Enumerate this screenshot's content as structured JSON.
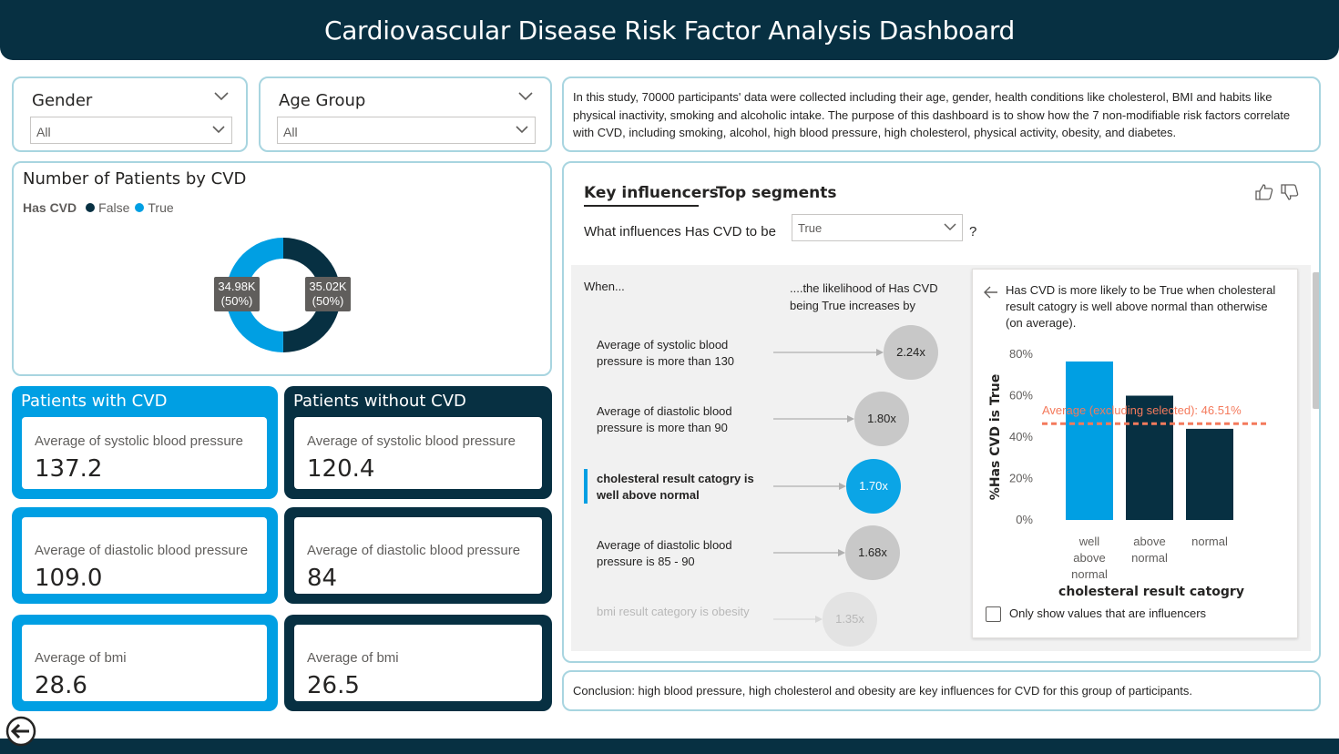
{
  "header": {
    "title": "Cardiovascular Disease Risk Factor Analysis Dashboard"
  },
  "colors": {
    "dark_navy": "#073042",
    "bright_blue": "#009fe3",
    "card_border": "#a8d5e0",
    "avg_line": "#f47a5c"
  },
  "filters": {
    "gender": {
      "label": "Gender",
      "value": "All"
    },
    "age_group": {
      "label": "Age Group",
      "value": "All"
    }
  },
  "description": "In this study, 70000 participants' data were collected including their age, gender, health conditions like cholesterol, BMI and habits like physical inactivity, smoking and alcoholic intake. The purpose of this dashboard is to show how the 7 non-modifiable risk factors correlate with CVD, including smoking, alcohol, high blood pressure, high cholesterol, physical activity, obesity, and diabetes.",
  "donut": {
    "title": "Number of Patients by CVD",
    "legend_title": "Has CVD",
    "legend": [
      {
        "name": "False",
        "color": "#073042"
      },
      {
        "name": "True",
        "color": "#009fe3"
      }
    ],
    "labels": {
      "true_value": "34.98K",
      "true_pct": "(50%)",
      "false_value": "35.02K",
      "false_pct": "(50%)"
    }
  },
  "chart_data": [
    {
      "type": "pie",
      "title": "Number of Patients by CVD",
      "legend_title": "Has CVD",
      "categories": [
        "False",
        "True"
      ],
      "values": [
        35020,
        34980
      ],
      "percentages": [
        50,
        50
      ],
      "colors": [
        "#073042",
        "#009fe3"
      ]
    },
    {
      "type": "bar",
      "xlabel": "cholesteral result catogry",
      "ylabel": "%Has CVD is True",
      "categories": [
        "well above normal",
        "above normal",
        "normal"
      ],
      "values": [
        76.5,
        60,
        44
      ],
      "ylim": [
        0,
        80
      ],
      "yticks": [
        "0%",
        "20%",
        "40%",
        "60%",
        "80%"
      ],
      "reference_line": {
        "label": "Average (excluding selected): 46.51%",
        "value": 46.51
      },
      "colors": [
        "#009fe3",
        "#073042",
        "#073042"
      ]
    }
  ],
  "with_cvd": {
    "title": "Patients with CVD",
    "tiles": [
      {
        "label": "Average of systolic blood pressure",
        "value": "137.2"
      },
      {
        "label": "Average of diastolic blood pressure",
        "value": "109.0"
      },
      {
        "label": "Average of bmi",
        "value": "28.6"
      }
    ]
  },
  "without_cvd": {
    "title": "Patients without CVD",
    "tiles": [
      {
        "label": "Average of systolic blood pressure",
        "value": "120.4"
      },
      {
        "label": "Average of diastolic blood pressure",
        "value": "84"
      },
      {
        "label": "Average of bmi",
        "value": "26.5"
      }
    ]
  },
  "key_influencers": {
    "tabs": [
      "Key influencers",
      "Top segments"
    ],
    "question_prefix": "What influences Has CVD to be",
    "selected_value": "True",
    "question_suffix": "?",
    "when_header": "When...",
    "likelihood_header": "....the likelihood of Has CVD being True increases by",
    "icons": [
      "thumbs-up-icon",
      "thumbs-down-icon"
    ],
    "rows": [
      {
        "label": "Average of systolic blood pressure is more than 130",
        "multiplier": "2.24x",
        "multiplier_value": 2.24
      },
      {
        "label": "Average of diastolic blood pressure is more than 90",
        "multiplier": "1.80x",
        "multiplier_value": 1.8
      },
      {
        "label": "cholesteral result catogry is well above normal",
        "multiplier": "1.70x",
        "multiplier_value": 1.7,
        "selected": true
      },
      {
        "label": "Average of diastolic blood pressure is 85 - 90",
        "multiplier": "1.68x",
        "multiplier_value": 1.68
      },
      {
        "label": "bmi result category is obesity",
        "multiplier": "1.35x",
        "multiplier_value": 1.35
      }
    ],
    "detail": {
      "text": "Has CVD is more likely to be True when cholesteral result catogry is well above normal than otherwise (on average).",
      "checkbox_label": "Only show values that are influencers",
      "x_tick_lines": [
        [
          "well",
          "above",
          "normal"
        ],
        [
          "above",
          "normal"
        ],
        [
          "normal"
        ]
      ]
    }
  },
  "conclusion": "Conclusion: high blood pressure, high cholesterol and obesity are key influences for CVD for this group of participants."
}
